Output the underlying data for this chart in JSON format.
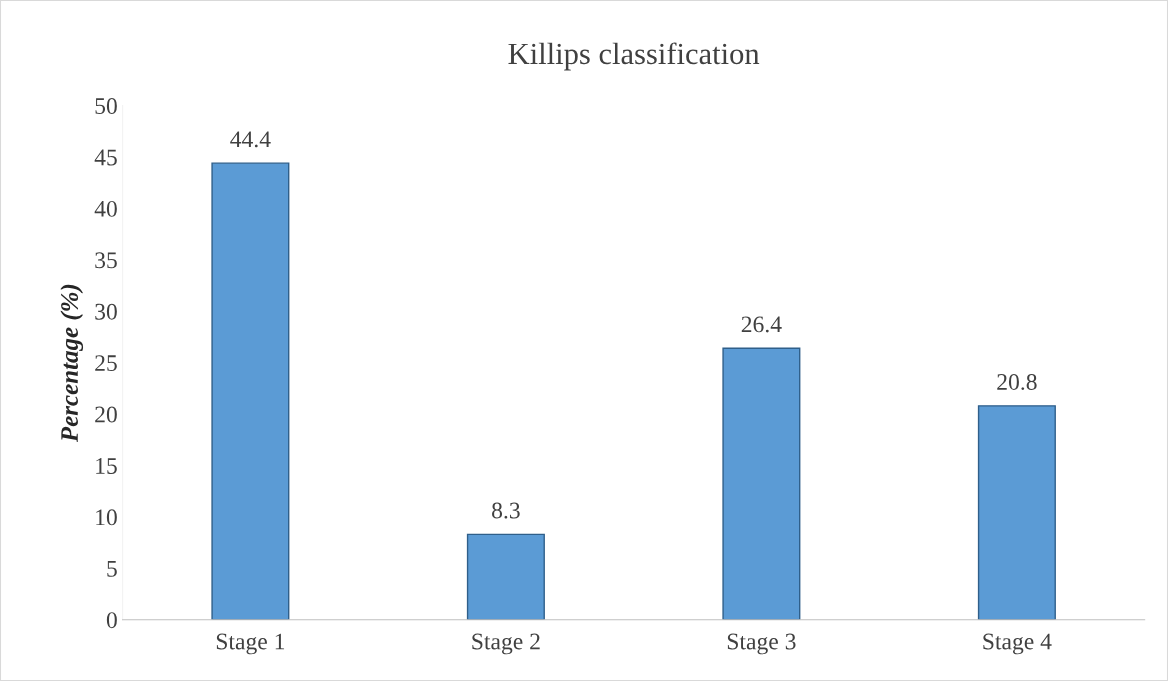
{
  "chart_data": {
    "type": "bar",
    "title": "Killips classification",
    "ylabel": "Percentage (%)",
    "categories": [
      "Stage 1",
      "Stage 2",
      "Stage 3",
      "Stage 4"
    ],
    "values": [
      44.4,
      8.3,
      26.4,
      20.8
    ],
    "color": "#5b9bd5",
    "ylim": [
      0,
      50
    ],
    "yticks": [
      0,
      5,
      10,
      15,
      20,
      25,
      30,
      35,
      40,
      45,
      50
    ],
    "data_labels": true,
    "grid": false,
    "legend": false
  }
}
